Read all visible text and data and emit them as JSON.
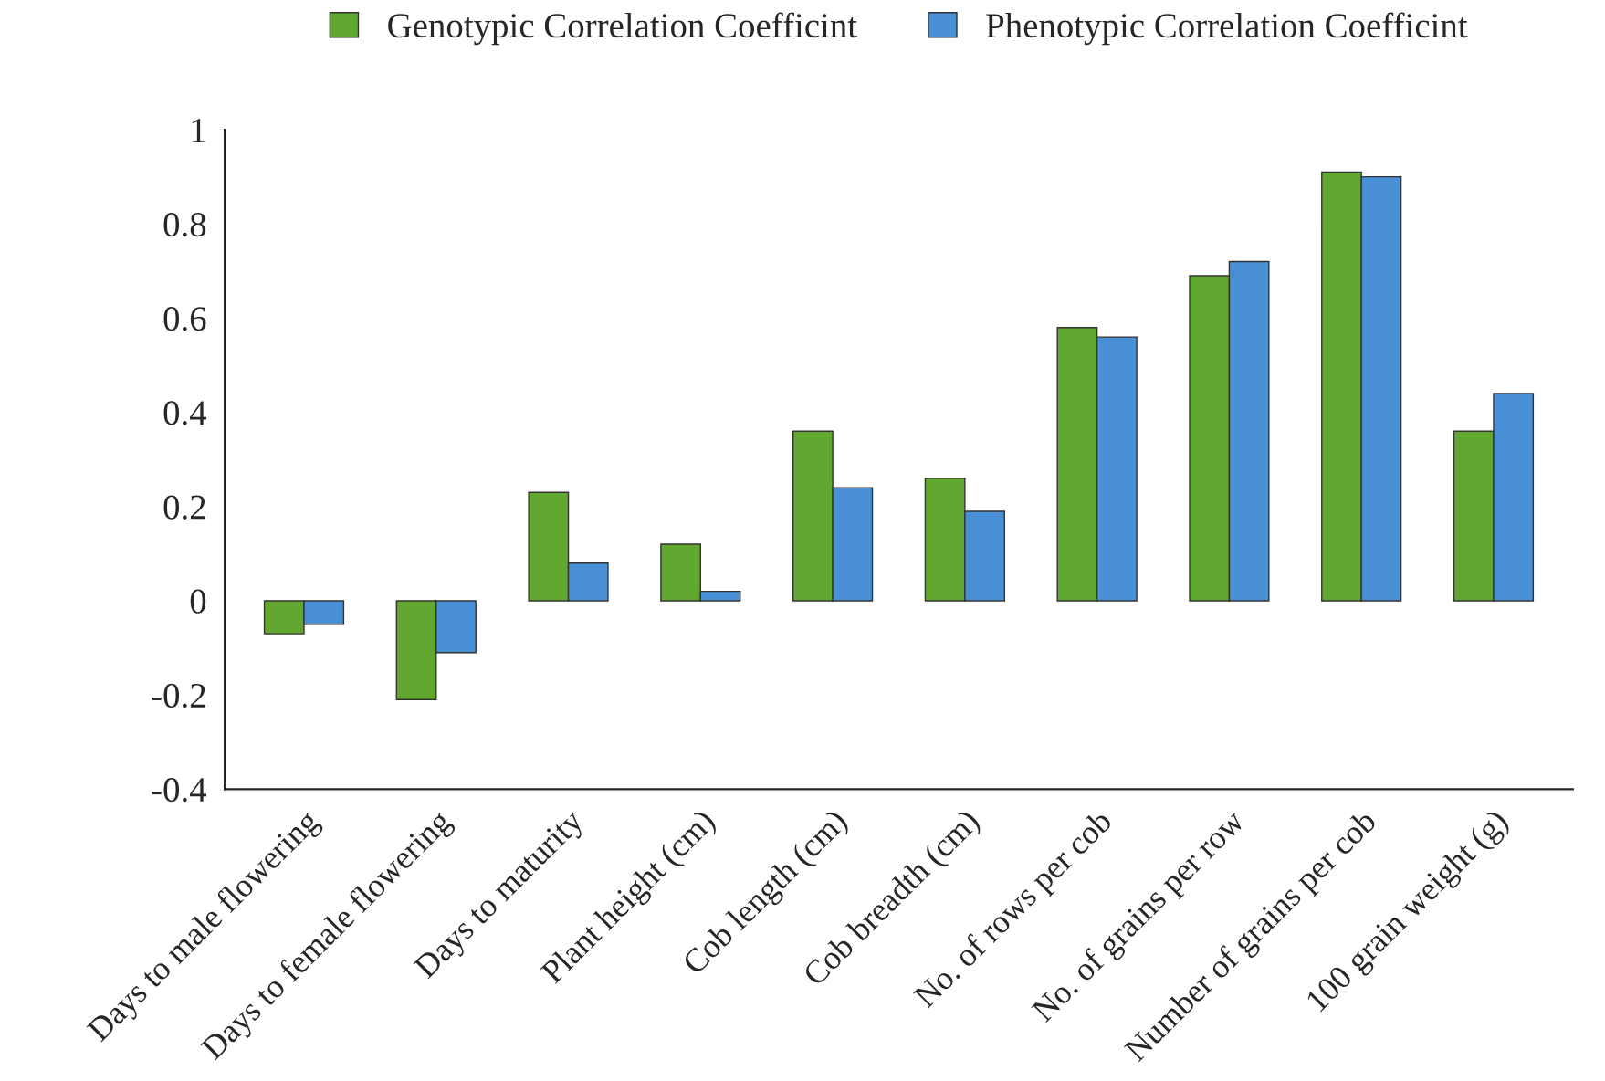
{
  "chart_data": {
    "type": "bar",
    "categories": [
      "Days to male flowering",
      "Days to female flowering",
      "Days to maturity",
      "Plant height (cm)",
      "Cob length (cm)",
      "Cob breadth (cm)",
      "No. of rows per cob",
      "No. of grains per row",
      "Number of grains per cob",
      "100 grain weight (g)"
    ],
    "series": [
      {
        "name": "Genotypic Correlation Coefficint",
        "color": "#62a830",
        "values": [
          -0.07,
          -0.21,
          0.23,
          0.12,
          0.36,
          0.26,
          0.58,
          0.69,
          0.91,
          0.36
        ]
      },
      {
        "name": "Phenotypic Correlation Coefficint",
        "color": "#4a90d6",
        "values": [
          -0.05,
          -0.11,
          0.08,
          0.02,
          0.24,
          0.19,
          0.56,
          0.72,
          0.9,
          0.44
        ]
      }
    ],
    "ylim": [
      -0.4,
      1
    ],
    "yticks": [
      -0.4,
      -0.2,
      0,
      0.2,
      0.4,
      0.6,
      0.8,
      1
    ],
    "grid": false,
    "legend": "top"
  }
}
